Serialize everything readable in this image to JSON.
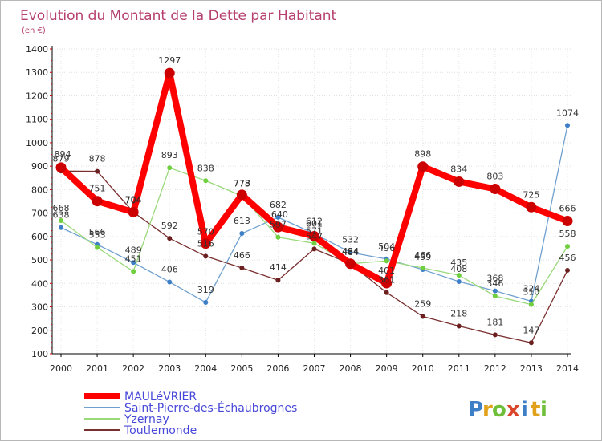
{
  "chart_data": {
    "type": "line",
    "title": "Evolution du Montant de la Dette par Habitant",
    "subtitle": "(en €)",
    "x": [
      "2000",
      "2001",
      "2002",
      "2003",
      "2004",
      "2005",
      "2006",
      "2007",
      "2008",
      "2009",
      "2010",
      "2011",
      "2012",
      "2013",
      "2014"
    ],
    "ylim": [
      100,
      1400
    ],
    "yticks": [
      100,
      200,
      300,
      400,
      500,
      600,
      700,
      800,
      900,
      1000,
      1100,
      1200,
      1300,
      1400
    ],
    "grid": true,
    "legend": "bottom-left",
    "series": [
      {
        "name": "MAULéVRIER",
        "color": "#ff0000",
        "marker": "#cc0000",
        "values": [
          894,
          751,
          704,
          1297,
          570,
          778,
          640,
          601,
          484,
          401,
          898,
          834,
          803,
          725,
          666
        ]
      },
      {
        "name": "Saint-Pierre-des-Échaubrognes",
        "color": "#6fa0cf",
        "marker": "#3d7fc7",
        "values": [
          638,
          566,
          489,
          406,
          319,
          613,
          682,
          612,
          532,
          504,
          459,
          408,
          368,
          324,
          1074
        ]
      },
      {
        "name": "Yzernay",
        "color": "#9ad97a",
        "marker": "#6fcf3f",
        "values": [
          668,
          553,
          451,
          893,
          838,
          773,
          597,
          571,
          484,
          496,
          466,
          435,
          346,
          310,
          558
        ]
      },
      {
        "name": "Toutlemonde",
        "color": "#7a2f2f",
        "marker": "#6b1f1f",
        "values": [
          879,
          878,
          704,
          592,
          516,
          466,
          414,
          547,
          484,
          361,
          259,
          218,
          181,
          147,
          456
        ]
      }
    ],
    "labels": [
      [
        {
          "t": "894",
          "dx": 2,
          "dy": -13
        },
        {
          "t": "751",
          "dx": 0,
          "dy": -12
        },
        {
          "t": "704",
          "dx": 0,
          "dy": -11
        },
        {
          "t": "1297",
          "dx": 0,
          "dy": -12
        },
        {
          "t": "570",
          "dx": 0,
          "dy": -11
        },
        {
          "t": "778",
          "dx": 0,
          "dy": -11
        },
        {
          "t": "640",
          "dx": 2,
          "dy": -12
        },
        {
          "t": "601",
          "dx": 0,
          "dy": -12
        },
        {
          "t": "484",
          "dx": 0,
          "dy": -11
        },
        {
          "t": "401",
          "dx": 0,
          "dy": -12
        },
        {
          "t": "898",
          "dx": 0,
          "dy": -12
        },
        {
          "t": "834",
          "dx": 0,
          "dy": -12
        },
        {
          "t": "803",
          "dx": 0,
          "dy": -12
        },
        {
          "t": "725",
          "dx": 0,
          "dy": -12
        },
        {
          "t": "666",
          "dx": 0,
          "dy": -12
        }
      ],
      [
        {
          "t": "638",
          "dx": 0,
          "dy": -12
        },
        {
          "t": "566",
          "dx": 0,
          "dy": -12
        },
        {
          "t": "489",
          "dx": 0,
          "dy": -12
        },
        {
          "t": "406",
          "dx": 0,
          "dy": -12
        },
        {
          "t": "319",
          "dx": 0,
          "dy": -12
        },
        {
          "t": "613",
          "dx": 0,
          "dy": -12
        },
        {
          "t": "682",
          "dx": 0,
          "dy": -12
        },
        {
          "t": "612",
          "dx": 0,
          "dy": -12
        },
        {
          "t": "532",
          "dx": 0,
          "dy": -12
        },
        {
          "t": "504",
          "dx": 0,
          "dy": -12
        },
        {
          "t": "459",
          "dx": 0,
          "dy": -12
        },
        {
          "t": "408",
          "dx": 0,
          "dy": -12
        },
        {
          "t": "368",
          "dx": 0,
          "dy": -12
        },
        {
          "t": "324",
          "dx": 0,
          "dy": -12
        },
        {
          "t": "1074",
          "dx": 0,
          "dy": -12
        }
      ],
      [
        {
          "t": "668",
          "dx": 0,
          "dy": -12
        },
        {
          "t": "553",
          "dx": 0,
          "dy": -12
        },
        {
          "t": "451",
          "dx": 0,
          "dy": -12
        },
        {
          "t": "893",
          "dx": 0,
          "dy": -12
        },
        {
          "t": "838",
          "dx": 0,
          "dy": -12
        },
        {
          "t": "773",
          "dx": 0,
          "dy": -12
        },
        {
          "t": "597",
          "dx": 0,
          "dy": -12
        },
        {
          "t": "571",
          "dx": 0,
          "dy": -12
        },
        {
          "t": "484",
          "dx": 0,
          "dy": -12
        },
        {
          "t": "496",
          "dx": 0,
          "dy": -12
        },
        {
          "t": "466",
          "dx": 0,
          "dy": -12
        },
        {
          "t": "435",
          "dx": 0,
          "dy": -12
        },
        {
          "t": "346",
          "dx": 0,
          "dy": -12
        },
        {
          "t": "310",
          "dx": 0,
          "dy": -12
        },
        {
          "t": "558",
          "dx": 0,
          "dy": -12
        }
      ],
      [
        {
          "t": "879",
          "dx": 0,
          "dy": -12
        },
        {
          "t": "878",
          "dx": 0,
          "dy": -12
        },
        {
          "t": "704",
          "dx": 0,
          "dy": -12
        },
        {
          "t": "592",
          "dx": 0,
          "dy": -12
        },
        {
          "t": "516",
          "dx": 0,
          "dy": -12
        },
        {
          "t": "466",
          "dx": 0,
          "dy": -12
        },
        {
          "t": "414",
          "dx": 0,
          "dy": -12
        },
        {
          "t": "547",
          "dx": 0,
          "dy": -12
        },
        {
          "t": "484",
          "dx": 0,
          "dy": -12
        },
        {
          "t": "361",
          "dx": 0,
          "dy": -12
        },
        {
          "t": "259",
          "dx": 0,
          "dy": -12
        },
        {
          "t": "218",
          "dx": 0,
          "dy": -12
        },
        {
          "t": "181",
          "dx": 0,
          "dy": -12
        },
        {
          "t": "147",
          "dx": 0,
          "dy": -12
        },
        {
          "t": "456",
          "dx": 0,
          "dy": -12
        }
      ]
    ]
  },
  "logo": {
    "name": "proxiti-logo",
    "letters": [
      {
        "ch": "P",
        "color": "#3d7fc7"
      },
      {
        "ch": "r",
        "color": "#e2a11b"
      },
      {
        "ch": "o",
        "color": "#6fbf3a"
      },
      {
        "ch": "x",
        "color": "#d9442b"
      },
      {
        "ch": "i",
        "color": "#3d7fc7"
      },
      {
        "ch": "t",
        "color": "#e2a11b"
      },
      {
        "ch": "i",
        "color": "#6fbf3a"
      }
    ]
  }
}
